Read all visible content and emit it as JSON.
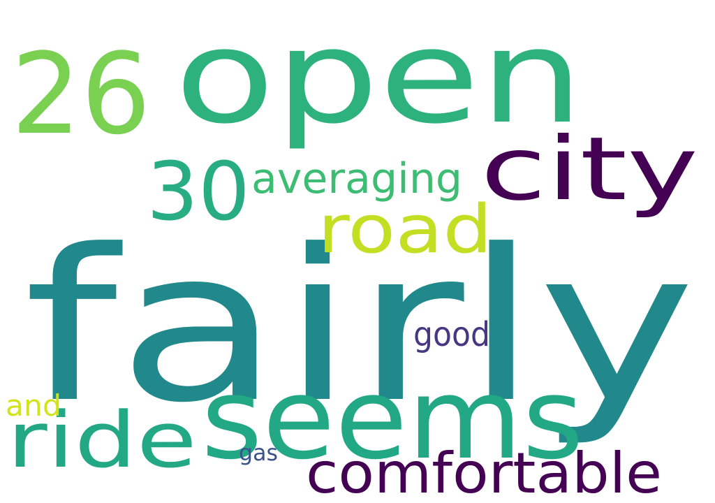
{
  "background": "#ffffff",
  "words": {
    "fairly": {
      "text": "fairly",
      "color": "#21898c"
    },
    "open": {
      "text": "open",
      "color": "#2db27d"
    },
    "seems": {
      "text": "seems",
      "color": "#22a884"
    },
    "city": {
      "text": "city",
      "color": "#440154"
    },
    "road": {
      "text": "road",
      "color": "#c2df23"
    },
    "n26": {
      "text": "26",
      "color": "#7ad151"
    },
    "n30": {
      "text": "30",
      "color": "#27ad81"
    },
    "averaging": {
      "text": "averaging",
      "color": "#3dbc74"
    },
    "ride": {
      "text": "ride",
      "color": "#22a884"
    },
    "comfortable": {
      "text": "comfortable",
      "color": "#440154"
    },
    "good": {
      "text": "good",
      "color": "#453781"
    },
    "and": {
      "text": "and",
      "color": "#d2e21b"
    },
    "gas": {
      "text": "gas",
      "color": "#3b528b"
    }
  }
}
